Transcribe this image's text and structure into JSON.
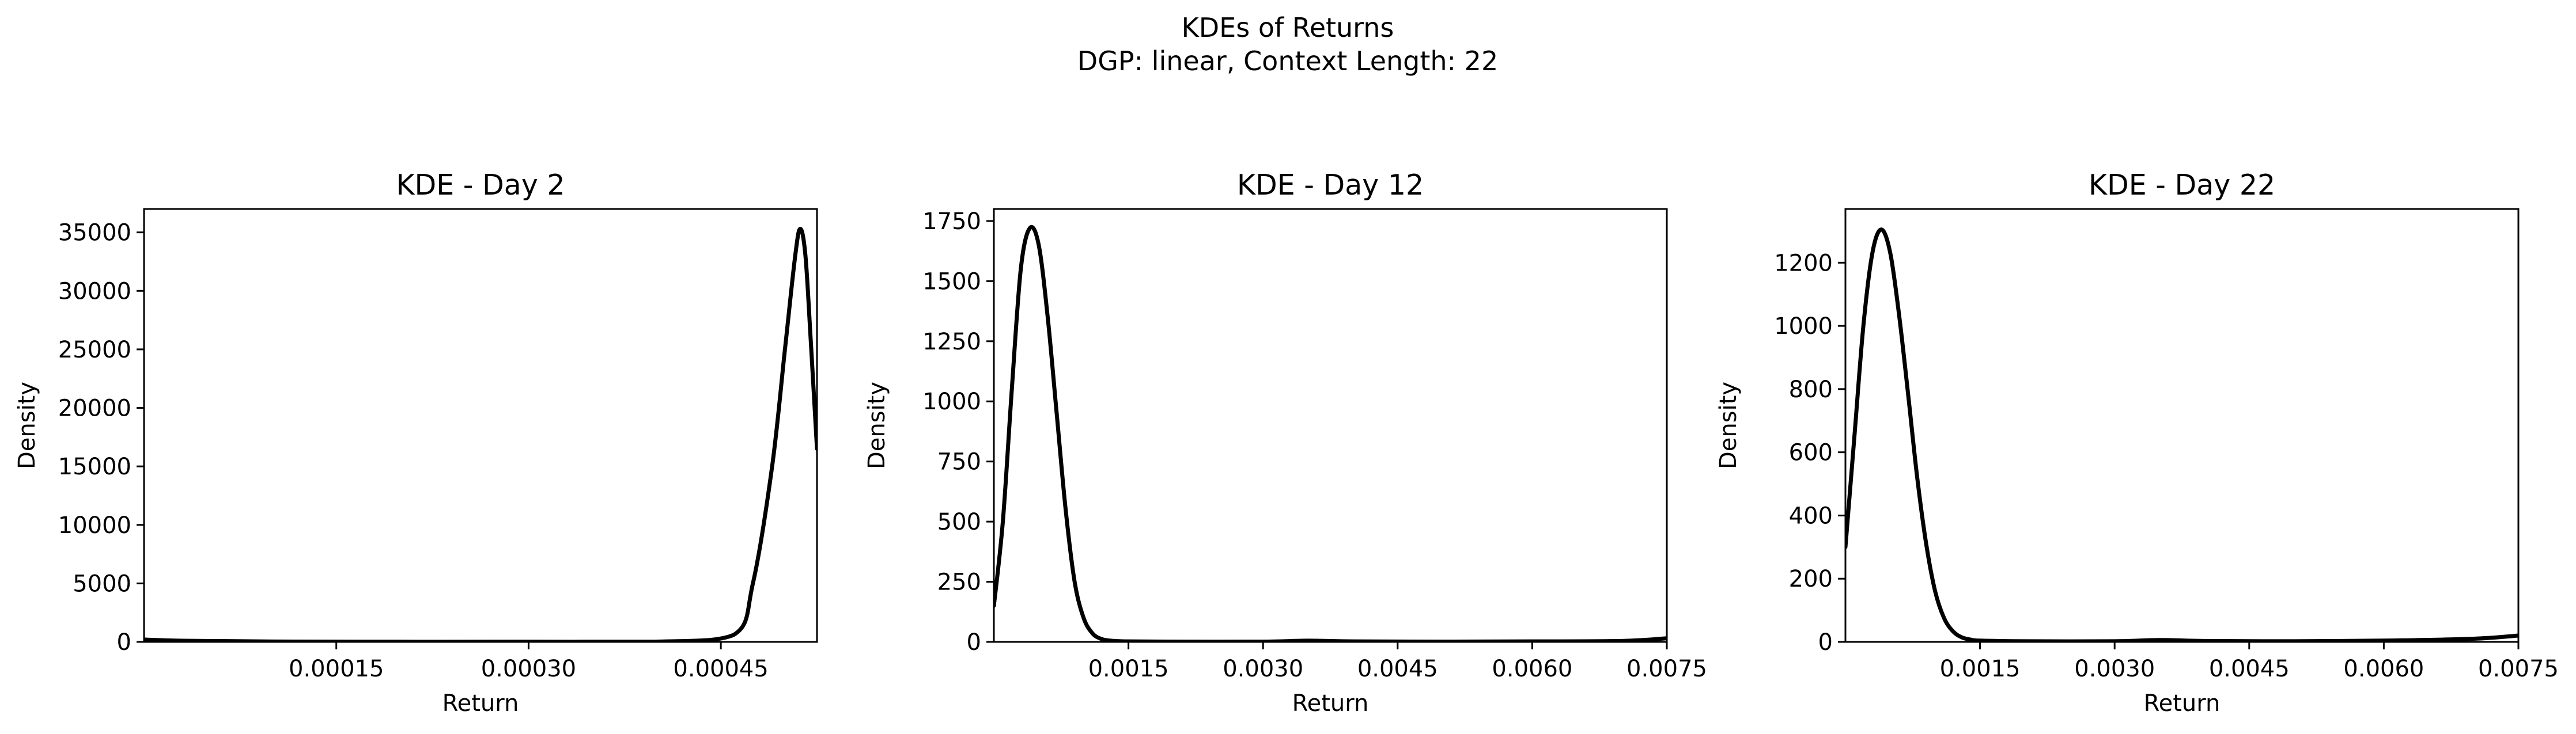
{
  "figure": {
    "suptitle_line1": "KDEs of Returns",
    "suptitle_line2": "DGP: linear, Context Length: 22"
  },
  "chart_data": [
    {
      "type": "line",
      "title": "KDE - Day 2",
      "xlabel": "Return",
      "ylabel": "Density",
      "xlim": [
        0.0,
        0.000525
      ],
      "ylim": [
        0,
        37000
      ],
      "xticks": [
        0.00015,
        0.0003,
        0.00045
      ],
      "xtick_labels": [
        "0.00015",
        "0.00030",
        "0.00045"
      ],
      "yticks": [
        0,
        5000,
        10000,
        15000,
        20000,
        25000,
        30000,
        35000
      ],
      "ytick_labels": [
        "0",
        "5000",
        "10000",
        "15000",
        "20000",
        "25000",
        "30000",
        "35000"
      ],
      "series": [
        {
          "name": "KDE",
          "color": "#000000",
          "x": [
            0.0,
            3e-05,
            0.0001,
            0.0002,
            0.0003,
            0.0004,
            0.00046,
            0.000475,
            0.00049,
            0.0005,
            0.000508,
            0.000512,
            0.000516,
            0.00052,
            0.000525
          ],
          "y": [
            200,
            100,
            30,
            10,
            10,
            20,
            600,
            5000,
            15000,
            25000,
            33000,
            35300,
            33000,
            26000,
            16500
          ]
        }
      ]
    },
    {
      "type": "line",
      "title": "KDE - Day 12",
      "xlabel": "Return",
      "ylabel": "Density",
      "xlim": [
        0.0,
        0.0075
      ],
      "ylim": [
        0,
        1800
      ],
      "xticks": [
        0.0015,
        0.003,
        0.0045,
        0.006,
        0.0075
      ],
      "xtick_labels": [
        "0.0015",
        "0.0030",
        "0.0045",
        "0.0060",
        "0.0075"
      ],
      "yticks": [
        0,
        250,
        500,
        750,
        1000,
        1250,
        1500,
        1750
      ],
      "ytick_labels": [
        "0",
        "250",
        "500",
        "750",
        "1000",
        "1250",
        "1500",
        "1750"
      ],
      "series": [
        {
          "name": "KDE",
          "color": "#000000",
          "x": [
            0.0,
            0.0001,
            0.0002,
            0.0003,
            0.0004,
            0.0005,
            0.0006,
            0.0007,
            0.0008,
            0.0009,
            0.001,
            0.0011,
            0.0012,
            0.0013,
            0.0014,
            0.0015,
            0.002,
            0.003,
            0.0035,
            0.004,
            0.005,
            0.006,
            0.007,
            0.0075
          ],
          "y": [
            150,
            500,
            1050,
            1550,
            1720,
            1650,
            1350,
            950,
            550,
            250,
            100,
            35,
            12,
            5,
            3,
            2,
            1,
            1,
            5,
            2,
            1,
            2,
            4,
            15
          ]
        }
      ]
    },
    {
      "type": "line",
      "title": "KDE - Day 22",
      "xlabel": "Return",
      "ylabel": "Density",
      "xlim": [
        0.0,
        0.0075
      ],
      "ylim": [
        0,
        1370
      ],
      "xticks": [
        0.0015,
        0.003,
        0.0045,
        0.006,
        0.0075
      ],
      "xtick_labels": [
        "0.0015",
        "0.0030",
        "0.0045",
        "0.0060",
        "0.0075"
      ],
      "yticks": [
        0,
        200,
        400,
        600,
        800,
        1000,
        1200
      ],
      "ytick_labels": [
        "0",
        "200",
        "400",
        "600",
        "800",
        "1000",
        "1200"
      ],
      "series": [
        {
          "name": "KDE",
          "color": "#000000",
          "x": [
            0.0,
            0.0001,
            0.0002,
            0.0003,
            0.0004,
            0.0005,
            0.0006,
            0.0007,
            0.0008,
            0.0009,
            0.001,
            0.0011,
            0.0012,
            0.0013,
            0.0014,
            0.0015,
            0.002,
            0.003,
            0.0035,
            0.004,
            0.005,
            0.006,
            0.007,
            0.0075
          ],
          "y": [
            300,
            650,
            1000,
            1230,
            1305,
            1230,
            1030,
            780,
            520,
            310,
            160,
            75,
            33,
            14,
            7,
            4,
            2,
            2,
            6,
            3,
            2,
            4,
            10,
            20
          ]
        }
      ]
    }
  ]
}
